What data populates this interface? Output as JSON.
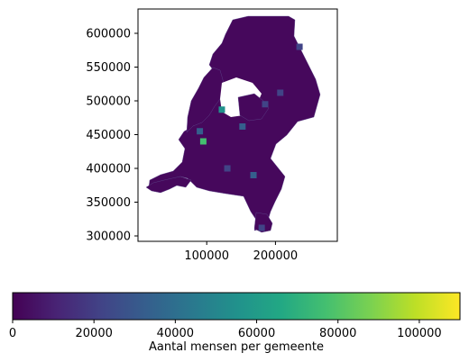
{
  "chart_data": {
    "type": "choropleth",
    "title": "",
    "xlabel": "",
    "ylabel": "",
    "x_ticks": [
      100000,
      200000
    ],
    "y_ticks": [
      300000,
      350000,
      400000,
      450000,
      500000,
      550000,
      600000
    ],
    "xlim": [
      0,
      290000
    ],
    "ylim": [
      292000,
      636000
    ],
    "colormap": "viridis",
    "colorbar": {
      "label": "Aantal mensen per gemeente",
      "min": 0,
      "max": 110000,
      "ticks": [
        0,
        20000,
        40000,
        60000,
        80000,
        100000
      ]
    },
    "highlights": [
      {
        "x": 122000,
        "y": 487000,
        "value": 58000
      },
      {
        "x": 95000,
        "y": 440000,
        "value": 72000
      },
      {
        "x": 90000,
        "y": 455000,
        "value": 36000
      },
      {
        "x": 152000,
        "y": 462000,
        "value": 32000
      },
      {
        "x": 168000,
        "y": 390000,
        "value": 28000
      },
      {
        "x": 185000,
        "y": 495000,
        "value": 26000
      },
      {
        "x": 207000,
        "y": 512000,
        "value": 24000
      },
      {
        "x": 235000,
        "y": 580000,
        "value": 22000
      },
      {
        "x": 180000,
        "y": 312000,
        "value": 20000
      },
      {
        "x": 130000,
        "y": 400000,
        "value": 18000
      }
    ],
    "colors": {
      "base": "#440154",
      "land": "#46085c",
      "border": "#5c3f8a"
    }
  }
}
